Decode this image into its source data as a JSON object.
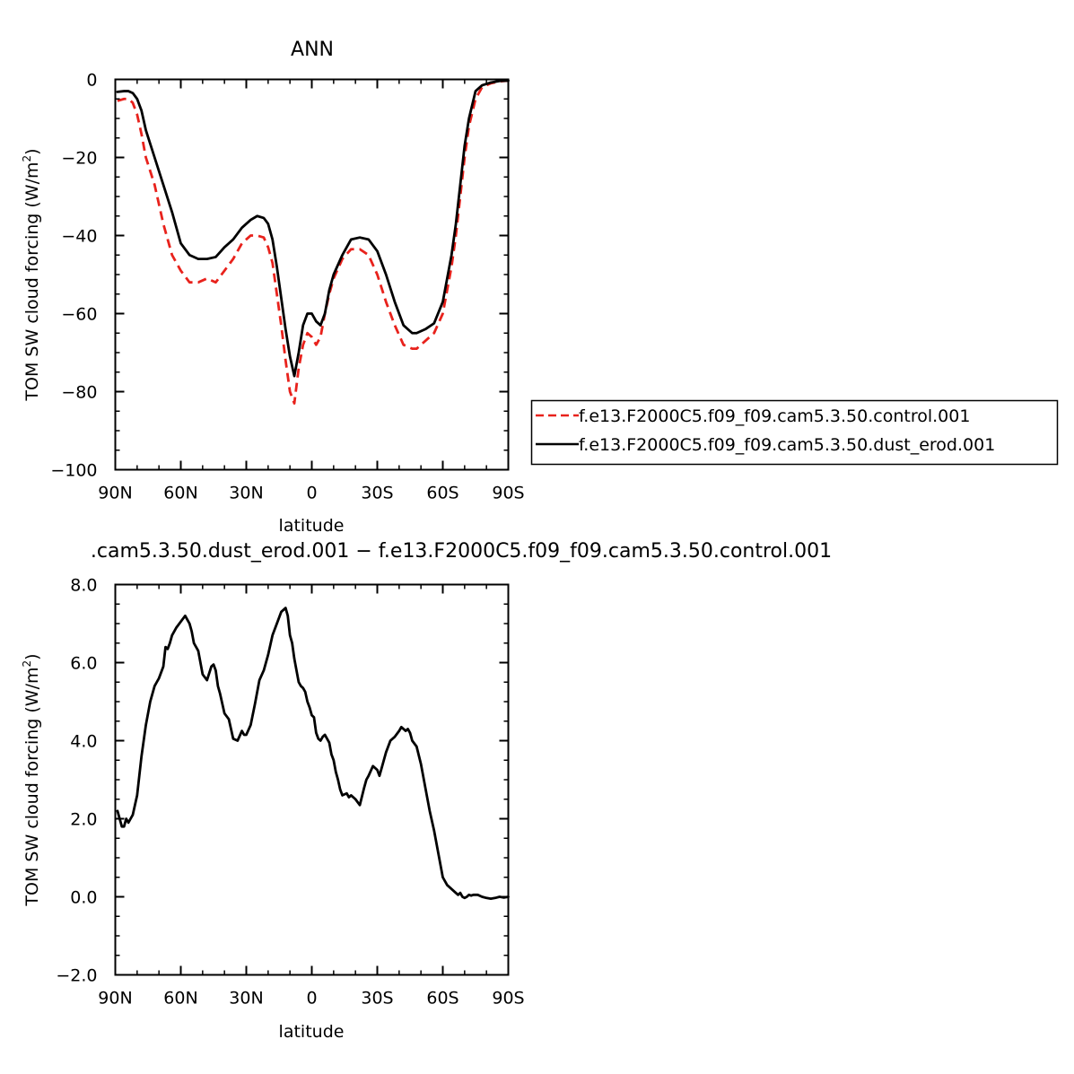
{
  "chart_data": [
    {
      "type": "line",
      "title": "ANN",
      "xlabel": "latitude",
      "ylabel": "TOM SW cloud forcing (W/m",
      "ylabel_sup": "2",
      "ylabel_close": ")",
      "xlim": [
        90,
        -90
      ],
      "ylim": [
        -100,
        0
      ],
      "x_ticks": [
        90,
        60,
        30,
        0,
        -30,
        -60,
        -90
      ],
      "x_tick_labels": [
        "90N",
        "60N",
        "30N",
        "0",
        "30S",
        "60S",
        "90S"
      ],
      "y_ticks": [
        0,
        -20,
        -40,
        -60,
        -80,
        -100
      ],
      "y_tick_labels": [
        "0",
        "−20",
        "−40",
        "−60",
        "−80",
        "−100"
      ],
      "legend_position": "right",
      "series": [
        {
          "name": "f.e13.F2000C5.f09_f09.cam5.3.50.control.001",
          "color": "#e8221c",
          "dash": "dashed",
          "x": [
            89,
            86,
            84,
            82,
            80,
            78,
            76,
            72,
            68,
            64,
            60,
            56,
            52,
            48,
            44,
            40,
            36,
            32,
            28,
            25,
            22,
            20,
            18,
            16,
            14,
            12,
            10,
            8,
            6,
            4,
            2,
            0,
            -2,
            -4,
            -6,
            -8,
            -10,
            -14,
            -18,
            -22,
            -26,
            -30,
            -34,
            -38,
            -42,
            -46,
            -48,
            -52,
            -56,
            -60,
            -64,
            -66,
            -68,
            -70,
            -72,
            -75,
            -78,
            -82,
            -86,
            -90
          ],
          "values": [
            -5.5,
            -5,
            -5,
            -6,
            -9,
            -14,
            -20,
            -27,
            -37,
            -45,
            -49,
            -52,
            -52,
            -51,
            -52,
            -49,
            -46,
            -42,
            -40,
            -40,
            -40.5,
            -43,
            -47,
            -55,
            -63,
            -72,
            -80,
            -83,
            -74,
            -68,
            -65,
            -66,
            -68,
            -66,
            -60,
            -55,
            -51,
            -46,
            -43.5,
            -43.5,
            -45,
            -50,
            -57,
            -63,
            -68,
            -69,
            -69,
            -67,
            -65,
            -60,
            -48,
            -40,
            -30,
            -20,
            -12,
            -5,
            -2,
            -1,
            -0.5,
            -0.3
          ]
        },
        {
          "name": "f.e13.F2000C5.f09_f09.cam5.3.50.dust_erod.001",
          "color": "#000000",
          "dash": "solid",
          "x": [
            89,
            86,
            84,
            82,
            80,
            78,
            76,
            72,
            68,
            64,
            60,
            56,
            52,
            48,
            44,
            40,
            36,
            32,
            28,
            25,
            22,
            20,
            18,
            16,
            14,
            12,
            10,
            8,
            6,
            4,
            2,
            0,
            -2,
            -4,
            -6,
            -8,
            -10,
            -14,
            -18,
            -22,
            -26,
            -30,
            -34,
            -38,
            -42,
            -46,
            -48,
            -52,
            -56,
            -60,
            -64,
            -66,
            -68,
            -70,
            -72,
            -75,
            -78,
            -82,
            -86,
            -90
          ],
          "values": [
            -3.2,
            -3,
            -3,
            -3.5,
            -5,
            -8,
            -13,
            -20,
            -27,
            -34,
            -42,
            -45,
            -46,
            -46,
            -45.5,
            -43,
            -41,
            -38,
            -36,
            -35,
            -35.5,
            -37,
            -41,
            -48,
            -56,
            -64,
            -71,
            -76,
            -70,
            -63,
            -60,
            -60,
            -62,
            -63,
            -60,
            -54,
            -50,
            -45,
            -41,
            -40.5,
            -41,
            -44,
            -50,
            -57,
            -63,
            -65,
            -65,
            -64,
            -62.5,
            -57,
            -45,
            -37,
            -27,
            -17,
            -10,
            -3,
            -1.5,
            -0.8,
            -0.4,
            -0.3
          ]
        }
      ]
    },
    {
      "type": "line",
      "title": ".cam5.3.50.dust_erod.001 − f.e13.F2000C5.f09_f09.cam5.3.50.control.001",
      "xlabel": "latitude",
      "ylabel": "TOM SW cloud forcing (W/m",
      "ylabel_sup": "2",
      "ylabel_close": ")",
      "xlim": [
        90,
        -90
      ],
      "ylim": [
        -2,
        8
      ],
      "x_ticks": [
        90,
        60,
        30,
        0,
        -30,
        -60,
        -90
      ],
      "x_tick_labels": [
        "90N",
        "60N",
        "30N",
        "0",
        "30S",
        "60S",
        "90S"
      ],
      "y_ticks": [
        8,
        6,
        4,
        2,
        0,
        -2
      ],
      "y_tick_labels": [
        "8.0",
        "6.0",
        "4.0",
        "2.0",
        "0.0",
        "−2.0"
      ],
      "series": [
        {
          "color": "#000000",
          "dash": "solid",
          "x": [
            89,
            88,
            87,
            86,
            85,
            84,
            83,
            82,
            80,
            78,
            76,
            74,
            72,
            71,
            70,
            68,
            67,
            66,
            65,
            64,
            62,
            60,
            58,
            57,
            56,
            55,
            54,
            52,
            51,
            50,
            48,
            46,
            45,
            44,
            43,
            42,
            40,
            38,
            36,
            34,
            32,
            31,
            30,
            28,
            26,
            24,
            22,
            20,
            18,
            16,
            14,
            12,
            11,
            10,
            9,
            8,
            7,
            6,
            5,
            4,
            3,
            2,
            1,
            0,
            -1,
            -2,
            -3,
            -4,
            -5,
            -6,
            -8,
            -9,
            -10,
            -11,
            -12,
            -13,
            -14,
            -16,
            -17,
            -18,
            -20,
            -22,
            -24,
            -25,
            -26,
            -28,
            -30,
            -31,
            -32,
            -33,
            -34,
            -36,
            -38,
            -40,
            -41,
            -42,
            -43,
            -44,
            -45,
            -46,
            -48,
            -50,
            -52,
            -54,
            -56,
            -58,
            -60,
            -62,
            -64,
            -66,
            -67,
            -68,
            -69,
            -70,
            -71,
            -72,
            -73,
            -74,
            -76,
            -78,
            -80,
            -82,
            -84,
            -86,
            -88,
            -90
          ],
          "values": [
            2.2,
            2.0,
            1.8,
            1.8,
            2.0,
            1.9,
            2.0,
            2.1,
            2.6,
            3.6,
            4.4,
            5.0,
            5.4,
            5.5,
            5.6,
            5.9,
            6.4,
            6.35,
            6.5,
            6.7,
            6.9,
            7.05,
            7.2,
            7.1,
            7.0,
            6.8,
            6.5,
            6.3,
            6.0,
            5.7,
            5.55,
            5.9,
            5.95,
            5.8,
            5.4,
            5.2,
            4.7,
            4.55,
            4.05,
            4.0,
            4.25,
            4.15,
            4.15,
            4.4,
            4.95,
            5.55,
            5.8,
            6.2,
            6.7,
            7.0,
            7.3,
            7.4,
            7.2,
            6.7,
            6.5,
            6.1,
            5.8,
            5.5,
            5.4,
            5.35,
            5.25,
            5.0,
            4.85,
            4.65,
            4.6,
            4.2,
            4.05,
            4.0,
            4.1,
            4.15,
            3.95,
            3.65,
            3.5,
            3.2,
            3.0,
            2.75,
            2.6,
            2.65,
            2.55,
            2.6,
            2.5,
            2.35,
            2.8,
            3.0,
            3.1,
            3.35,
            3.25,
            3.1,
            3.3,
            3.5,
            3.7,
            4.0,
            4.1,
            4.25,
            4.35,
            4.3,
            4.25,
            4.3,
            4.2,
            4.0,
            3.85,
            3.4,
            2.8,
            2.2,
            1.7,
            1.1,
            0.5,
            0.3,
            0.2,
            0.1,
            0.05,
            0.1,
            0.0,
            -0.03,
            0.0,
            0.05,
            0.03,
            0.05,
            0.05,
            0.0,
            -0.03,
            -0.05,
            -0.03,
            0.0,
            -0.02,
            0.0
          ]
        }
      ]
    }
  ]
}
